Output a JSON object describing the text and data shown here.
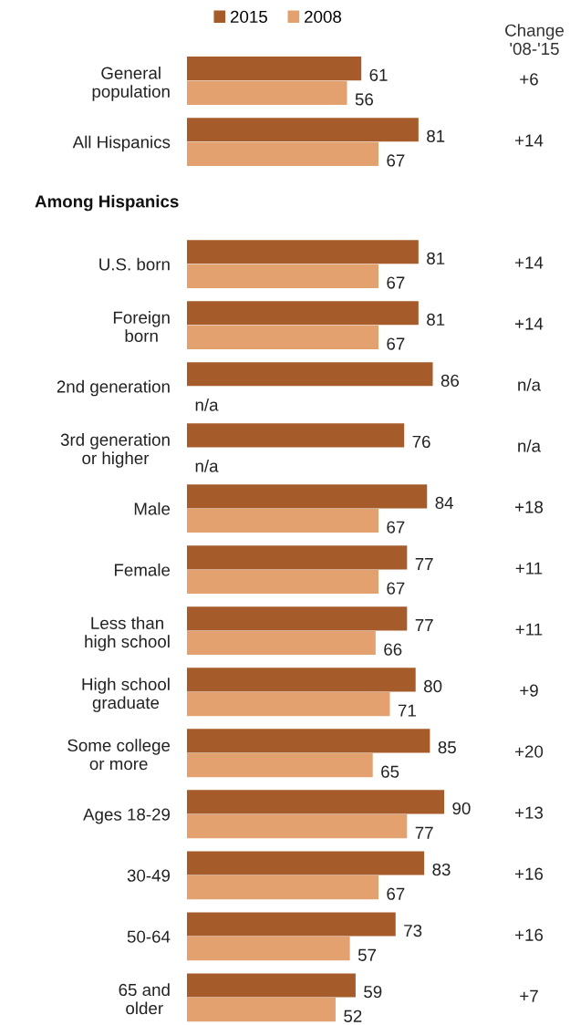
{
  "chart_data": {
    "type": "bar",
    "orientation": "horizontal",
    "data_labels": true,
    "legend": "top",
    "categories": [
      "General\npopulation",
      "All Hispanics",
      null,
      "U.S. born",
      "Foreign\nborn",
      "2nd generation",
      "3rd generation\nor higher",
      "Male",
      "Female",
      "Less than\nhigh school",
      "High school\ngraduate",
      "Some college\nor more",
      "Ages 18-29",
      "30-49",
      "50-64",
      "65 and\nolder"
    ],
    "series": [
      {
        "name": "2015",
        "color": "#a65b2a",
        "values": [
          61,
          81,
          null,
          81,
          81,
          86,
          76,
          84,
          77,
          77,
          80,
          85,
          90,
          83,
          73,
          59
        ]
      },
      {
        "name": "2008",
        "color": "#e2a16f",
        "values": [
          56,
          67,
          null,
          67,
          67,
          null,
          null,
          67,
          67,
          66,
          71,
          65,
          77,
          67,
          57,
          52
        ],
        "value_labels": [
          "56",
          "67",
          null,
          "67",
          "67",
          "n/a",
          "n/a",
          "67",
          "67",
          "66",
          "71",
          "65",
          "77",
          "67",
          "57",
          "52"
        ]
      }
    ],
    "annotations": [
      "Change\n'08-'15",
      "Among Hispanics",
      "+6",
      "+14",
      "+14",
      "+14",
      "n/a",
      "n/a",
      "+18",
      "+11",
      "+11",
      "+9",
      "+20",
      "+13",
      "+16",
      "+16",
      "+7"
    ]
  }
}
